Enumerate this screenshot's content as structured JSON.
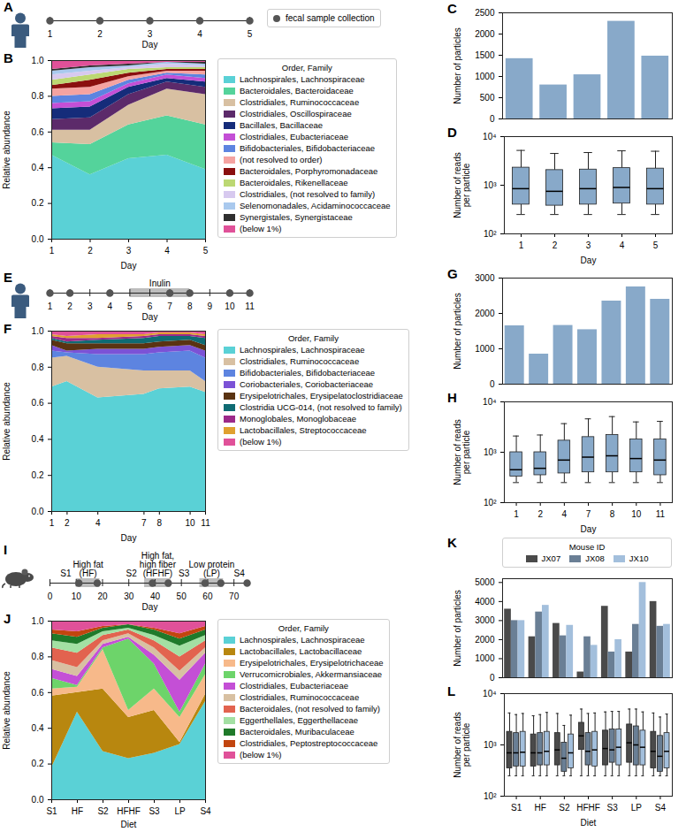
{
  "chart_data": [
    {
      "panel": "A",
      "type": "timeline",
      "xlabel": "Day",
      "xlim": [
        1,
        5
      ],
      "xticks": [
        1,
        2,
        3,
        4,
        5
      ],
      "samples": [
        1,
        2,
        3,
        4,
        5
      ],
      "legend": "right",
      "legend_label": "fecal sample collection"
    },
    {
      "panel": "B",
      "type": "area",
      "stacked": true,
      "xlabel": "Day",
      "ylabel": "Relative abundance",
      "x": [
        1,
        2,
        3,
        4,
        5
      ],
      "xlim": [
        1,
        5
      ],
      "xticks": [
        1,
        2,
        3,
        4,
        5
      ],
      "ylim": [
        0,
        1
      ],
      "yticks": [
        {
          "value": 0,
          "label": "0.0"
        },
        0.2,
        0.4,
        0.6,
        0.8,
        {
          "value": 1,
          "label": "1.0"
        }
      ],
      "legend": "right",
      "legend_title": "Order, Family",
      "series": [
        {
          "name": "Lachnospirales, Lachnospiraceae",
          "color": "#5ad1d6",
          "values": [
            0.47,
            0.36,
            0.45,
            0.47,
            0.39
          ]
        },
        {
          "name": "Bacteroidales, Bacteroidaceae",
          "color": "#54d39b",
          "values": [
            0.07,
            0.17,
            0.19,
            0.22,
            0.25
          ]
        },
        {
          "name": "Clostridiales, Ruminococcaceae",
          "color": "#d8c0a2",
          "values": [
            0.07,
            0.08,
            0.11,
            0.15,
            0.17
          ]
        },
        {
          "name": "Clostridiales, Oscillospiraceae",
          "color": "#5c2a6a",
          "values": [
            0.06,
            0.07,
            0.06,
            0.04,
            0.04
          ]
        },
        {
          "name": "Bacillales, Bacillaceae",
          "color": "#152c7a",
          "values": [
            0.06,
            0.06,
            0.04,
            0.02,
            0.03
          ]
        },
        {
          "name": "Clostridiales, Eubacteriaceae",
          "color": "#c44fd6",
          "values": [
            0.03,
            0.03,
            0.02,
            0.02,
            0.02
          ]
        },
        {
          "name": "Bifidobacteriales, Bifidobacteriaceae",
          "color": "#5d84e0",
          "values": [
            0.04,
            0.04,
            0.02,
            0.01,
            0.02
          ]
        },
        {
          "name": "(not resolved to order)",
          "color": "#f5a3a1",
          "values": [
            0.04,
            0.04,
            0.02,
            0.01,
            0.02
          ]
        },
        {
          "name": "Bacteroidales, Porphyromonadaceae",
          "color": "#8a0f0f",
          "values": [
            0.02,
            0.04,
            0.02,
            0.01,
            0.01
          ]
        },
        {
          "name": "Bacteroidales, Rikenellaceae",
          "color": "#bcd873",
          "values": [
            0.03,
            0.03,
            0.02,
            0.01,
            0.01
          ]
        },
        {
          "name": "Clostridiales, (not resolved to family)",
          "color": "#d7c9ef",
          "values": [
            0.03,
            0.02,
            0.01,
            0.02,
            0.01
          ]
        },
        {
          "name": "Selenomonadales, Acidaminococcaceae",
          "color": "#a9c9ee",
          "values": [
            0.02,
            0.02,
            0.01,
            0.01,
            0.01
          ]
        },
        {
          "name": "Synergistales, Synergistaceae",
          "color": "#2f2f2f",
          "values": [
            0.01,
            0.01,
            0.01,
            0.0,
            0.01
          ]
        },
        {
          "name": "(below 1%)",
          "color": "#e05199",
          "values": [
            0.05,
            0.03,
            0.02,
            0.01,
            0.01
          ]
        }
      ]
    },
    {
      "panel": "C",
      "type": "bar",
      "ylabel": "Number of particles",
      "categories": [
        1,
        2,
        3,
        4,
        5
      ],
      "values": [
        1420,
        800,
        1040,
        2300,
        1480
      ],
      "color": "#88a9c9",
      "ylim": [
        0,
        2500
      ],
      "yticks": [
        0,
        500,
        1000,
        1500,
        2000,
        2500
      ],
      "tick_labels": "y"
    },
    {
      "panel": "D",
      "type": "box",
      "xlabel": "Day",
      "ylabel": "Number of reads per particle",
      "categories": [
        1,
        2,
        3,
        4,
        5
      ],
      "log": "y",
      "ylim": [
        100,
        10000
      ],
      "yticks": [
        {
          "value": 100,
          "label": "10²"
        },
        {
          "value": 1000,
          "label": "10³"
        },
        {
          "value": 10000,
          "label": "10⁴"
        }
      ],
      "color": "#88a9c9",
      "min": [
        250,
        250,
        250,
        250,
        250
      ],
      "q1": [
        400,
        380,
        400,
        420,
        400
      ],
      "median": [
        850,
        750,
        850,
        900,
        850
      ],
      "q3": [
        2300,
        2050,
        2100,
        2250,
        2200
      ],
      "max": [
        5200,
        4500,
        4700,
        5100,
        5000
      ]
    },
    {
      "panel": "E",
      "type": "timeline",
      "xlabel": "Day",
      "xlim": [
        1,
        11
      ],
      "xticks": [
        1,
        2,
        3,
        4,
        5,
        6,
        7,
        8,
        9,
        10,
        11
      ],
      "samples": [
        1,
        2,
        4,
        7,
        8,
        10,
        11
      ],
      "periods": [
        {
          "label": [
            "Inulin"
          ],
          "start": 5,
          "end": 8
        }
      ]
    },
    {
      "panel": "F",
      "type": "area",
      "stacked": true,
      "xlabel": "Day",
      "ylabel": "Relative abundance",
      "x": [
        1,
        2,
        4,
        7,
        8,
        10,
        11
      ],
      "xlim": [
        1,
        11
      ],
      "xticks": [
        1,
        2,
        4,
        7,
        8,
        10,
        11
      ],
      "ylim": [
        0,
        1
      ],
      "yticks": [
        {
          "value": 0,
          "label": "0.0"
        },
        0.2,
        0.4,
        0.6,
        0.8,
        {
          "value": 1,
          "label": "1.0"
        }
      ],
      "legend": "right",
      "legend_title": "Order, Family",
      "series": [
        {
          "name": "Lachnospirales, Lachnospiraceae",
          "color": "#5ad1d6",
          "values": [
            0.69,
            0.72,
            0.63,
            0.65,
            0.68,
            0.69,
            0.66
          ]
        },
        {
          "name": "Clostridiales, Ruminococcaceae",
          "color": "#d8c0a2",
          "values": [
            0.16,
            0.14,
            0.17,
            0.13,
            0.1,
            0.09,
            0.06
          ]
        },
        {
          "name": "Bifidobacteriales, Bifidobacteriaceae",
          "color": "#5d84e0",
          "values": [
            0.04,
            0.02,
            0.07,
            0.09,
            0.1,
            0.11,
            0.13
          ]
        },
        {
          "name": "Coriobacteriales, Coriobacteriaceae",
          "color": "#7b52d6",
          "values": [
            0.03,
            0.01,
            0.03,
            0.03,
            0.03,
            0.03,
            0.04
          ]
        },
        {
          "name": "Erysipelotrichales, Erysipelatoclostridiaceae",
          "color": "#5a3312",
          "values": [
            0.03,
            0.04,
            0.03,
            0.03,
            0.03,
            0.03,
            0.03
          ]
        },
        {
          "name": "Clostridia UCG-014, (not resolved to family)",
          "color": "#0f6b73",
          "values": [
            0.01,
            0.01,
            0.02,
            0.03,
            0.03,
            0.02,
            0.04
          ]
        },
        {
          "name": "Monoglobales, Monoglobaceae",
          "color": "#9c2a8a",
          "values": [
            0.01,
            0.02,
            0.01,
            0.01,
            0.01,
            0.01,
            0.01
          ]
        },
        {
          "name": "Lactobacillales, Streptococcaceae",
          "color": "#e0a030",
          "values": [
            0.01,
            0.01,
            0.02,
            0.01,
            0.01,
            0.01,
            0.01
          ]
        },
        {
          "name": "(below 1%)",
          "color": "#e05199",
          "values": [
            0.02,
            0.03,
            0.02,
            0.02,
            0.01,
            0.01,
            0.02
          ]
        }
      ]
    },
    {
      "panel": "G",
      "type": "bar",
      "ylabel": "Number of particles",
      "categories": [
        1,
        2,
        4,
        7,
        8,
        10,
        11
      ],
      "values": [
        1650,
        850,
        1660,
        1540,
        2350,
        2750,
        2400
      ],
      "color": "#88a9c9",
      "ylim": [
        0,
        3000
      ],
      "yticks": [
        0,
        1000,
        2000,
        3000
      ],
      "tick_labels": "y"
    },
    {
      "panel": "H",
      "type": "box",
      "xlabel": "Day",
      "ylabel": "Number of reads per particle",
      "categories": [
        1,
        2,
        4,
        7,
        8,
        10,
        11
      ],
      "log": "y",
      "ylim": [
        100,
        10000
      ],
      "yticks": [
        {
          "value": 100,
          "label": "10²"
        },
        {
          "value": 1000,
          "label": "10³"
        },
        {
          "value": 10000,
          "label": "10⁴"
        }
      ],
      "color": "#88a9c9",
      "min": [
        250,
        250,
        250,
        250,
        250,
        250,
        250
      ],
      "q1": [
        330,
        350,
        380,
        400,
        400,
        400,
        350
      ],
      "median": [
        450,
        480,
        700,
        800,
        850,
        750,
        700
      ],
      "q3": [
        1000,
        1000,
        1700,
        2000,
        2200,
        1800,
        1800
      ],
      "max": [
        2100,
        2200,
        3700,
        4600,
        5100,
        4000,
        4100
      ]
    },
    {
      "panel": "I",
      "type": "timeline",
      "xlabel": "Day",
      "xlim": [
        0,
        76
      ],
      "xticks": [
        0,
        10,
        20,
        30,
        40,
        50,
        60,
        70
      ],
      "samples": [
        11,
        18,
        39,
        45,
        59,
        65,
        75
      ],
      "periods": [
        {
          "label": [
            "High fat",
            "(HF)"
          ],
          "start": 10,
          "end": 19
        },
        {
          "label": [
            "High fat,",
            "high fiber",
            "(HFHF)"
          ],
          "start": 36,
          "end": 46
        },
        {
          "label": [
            "Low protein",
            "(LP)"
          ],
          "start": 57,
          "end": 66
        }
      ],
      "annotations": [
        {
          "text": "S1",
          "x": 6
        },
        {
          "text": "S2",
          "x": 31
        },
        {
          "text": "S3",
          "x": 51
        },
        {
          "text": "S4",
          "x": 72
        }
      ]
    },
    {
      "panel": "J",
      "type": "area",
      "stacked": true,
      "xlabel": "Diet",
      "ylabel": "Relative abundance",
      "categories": [
        "S1",
        "HF",
        "S2",
        "HFHF",
        "S3",
        "LP",
        "S4"
      ],
      "ylim": [
        0,
        1
      ],
      "yticks": [
        {
          "value": 0,
          "label": "0.0"
        },
        0.2,
        0.4,
        0.6,
        0.8,
        {
          "value": 1,
          "label": "1.0"
        }
      ],
      "legend": "right",
      "legend_title": "Order, Family",
      "series": [
        {
          "name": "Lachnospirales, Lachnospiraceae",
          "color": "#5ad1d6",
          "values": [
            0.18,
            0.49,
            0.27,
            0.23,
            0.26,
            0.31,
            0.55
          ]
        },
        {
          "name": "Lactobacillales, Lactobacillaceae",
          "color": "#b8870f",
          "values": [
            0.4,
            0.11,
            0.35,
            0.23,
            0.24,
            0.01,
            0.04
          ]
        },
        {
          "name": "Erysipelotrichales, Erysipelotrichaceae",
          "color": "#f7b98a",
          "values": [
            0.04,
            0.03,
            0.22,
            0.04,
            0.12,
            0.14,
            0.11
          ]
        },
        {
          "name": "Verrucomicrobiales, Akkermansiaceae",
          "color": "#6dd46a",
          "values": [
            0.06,
            0.01,
            0.01,
            0.4,
            0.14,
            0.03,
            0.06
          ]
        },
        {
          "name": "Clostridiales, Eubacteriaceae",
          "color": "#c44fd6",
          "values": [
            0.05,
            0.05,
            0.02,
            0.01,
            0.05,
            0.18,
            0.06
          ]
        },
        {
          "name": "Clostridiales, Ruminococcaceae",
          "color": "#d8c0a2",
          "values": [
            0.05,
            0.05,
            0.02,
            0.02,
            0.04,
            0.05,
            0.03
          ]
        },
        {
          "name": "Bacteroidales, (not resolved to family)",
          "color": "#e2634f",
          "values": [
            0.07,
            0.08,
            0.03,
            0.02,
            0.04,
            0.08,
            0.04
          ]
        },
        {
          "name": "Eggerthellales, Eggerthellaceae",
          "color": "#a3e0a3",
          "values": [
            0.04,
            0.05,
            0.02,
            0.01,
            0.03,
            0.06,
            0.03
          ]
        },
        {
          "name": "Bacteroidales, Muribaculaceae",
          "color": "#1f7a2a",
          "values": [
            0.04,
            0.04,
            0.02,
            0.02,
            0.03,
            0.04,
            0.03
          ]
        },
        {
          "name": "Clostridiales, Peptostreptococcaceae",
          "color": "#c2450f",
          "values": [
            0.02,
            0.03,
            0.01,
            0.0,
            0.01,
            0.03,
            0.02
          ]
        },
        {
          "name": "(below 1%)",
          "color": "#e05199",
          "values": [
            0.05,
            0.06,
            0.03,
            0.02,
            0.04,
            0.07,
            0.03
          ]
        }
      ]
    },
    {
      "panel": "K",
      "type": "bar",
      "ylabel": "Number of particles",
      "categories": [
        "S1",
        "HF",
        "S2",
        "HFHF",
        "S3",
        "LP",
        "S4"
      ],
      "ylim": [
        0,
        5200
      ],
      "yticks": [
        0,
        1000,
        2000,
        3000,
        4000,
        5000
      ],
      "tick_labels": "y",
      "legend": "top",
      "legend_title": "Mouse ID",
      "series": [
        {
          "name": "JX07",
          "color": "#4a4a4a",
          "values": [
            3600,
            2150,
            2850,
            300,
            3750,
            1350,
            4000
          ]
        },
        {
          "name": "JX08",
          "color": "#6a7f95",
          "values": [
            3000,
            3450,
            2200,
            2150,
            1350,
            2800,
            2700
          ]
        },
        {
          "name": "JX10",
          "color": "#a3bfdc",
          "values": [
            3000,
            3800,
            2750,
            1700,
            2000,
            5000,
            2800
          ]
        }
      ]
    },
    {
      "panel": "L",
      "type": "box",
      "xlabel": "Diet",
      "ylabel": "Number of reads per particle",
      "categories": [
        "S1",
        "HF",
        "S2",
        "HFHF",
        "S3",
        "LP",
        "S4"
      ],
      "log": "y",
      "ylim": [
        100,
        10000
      ],
      "yticks": [
        {
          "value": 100,
          "label": "10²"
        },
        {
          "value": 1000,
          "label": "10³"
        },
        {
          "value": 10000,
          "label": "10⁴"
        }
      ],
      "series": [
        {
          "name": "JX07",
          "color": "#4a4a4a",
          "min": [
            250,
            250,
            250,
            250,
            250,
            250,
            250
          ],
          "q1": [
            350,
            380,
            400,
            800,
            400,
            450,
            350
          ],
          "median": [
            700,
            700,
            800,
            1500,
            850,
            1100,
            750
          ],
          "q3": [
            1800,
            1600,
            1700,
            2700,
            1900,
            2500,
            1800
          ],
          "max": [
            4200,
            3700,
            4100,
            5000,
            4400,
            5000,
            4200
          ]
        },
        {
          "name": "JX08",
          "color": "#6a7f95",
          "min": [
            250,
            250,
            250,
            250,
            250,
            250,
            250
          ],
          "q1": [
            380,
            400,
            300,
            400,
            450,
            400,
            300
          ],
          "median": [
            700,
            700,
            550,
            750,
            800,
            1000,
            600
          ],
          "q3": [
            1700,
            1700,
            1100,
            1700,
            2000,
            2300,
            1500
          ],
          "max": [
            3900,
            3900,
            2400,
            4100,
            4500,
            5000,
            3500
          ]
        },
        {
          "name": "JX10",
          "color": "#a3bfdc",
          "min": [
            250,
            250,
            250,
            250,
            250,
            250,
            250
          ],
          "q1": [
            380,
            400,
            350,
            380,
            400,
            400,
            350
          ],
          "median": [
            720,
            750,
            700,
            800,
            900,
            900,
            750
          ],
          "q3": [
            1800,
            1800,
            1600,
            1800,
            2000,
            1900,
            1700
          ],
          "max": [
            4100,
            4300,
            3800,
            4200,
            4500,
            4400,
            4000
          ]
        }
      ]
    }
  ]
}
